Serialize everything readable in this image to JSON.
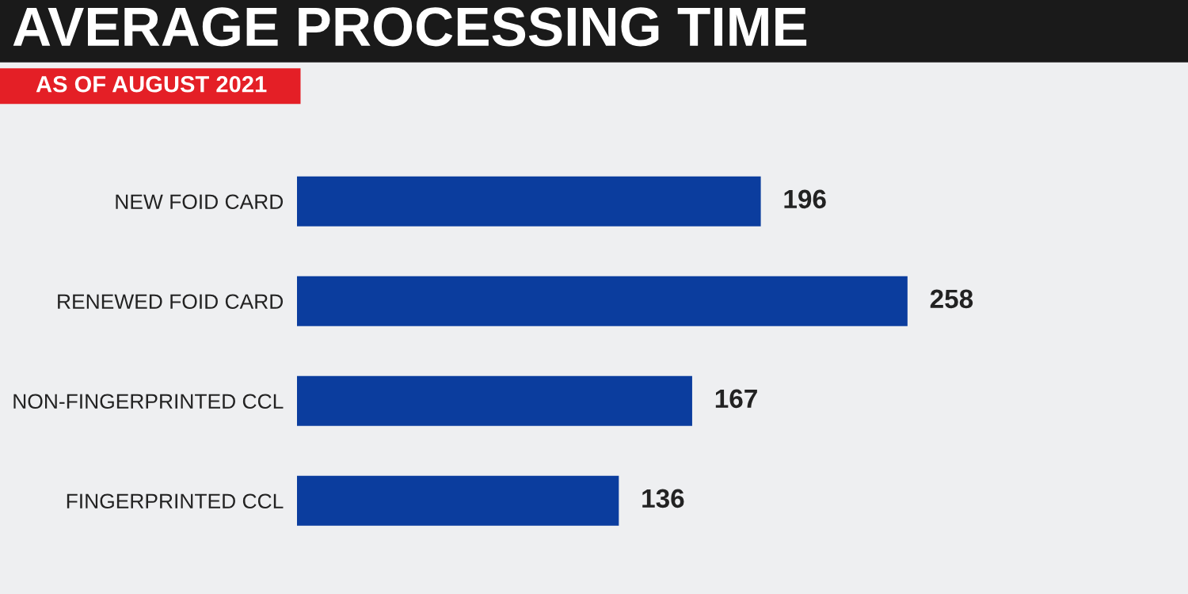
{
  "chart_data": {
    "type": "bar",
    "orientation": "horizontal",
    "title": "AVERAGE PROCESSING TIME",
    "subtitle": "AS OF AUGUST 2021",
    "categories": [
      "NEW FOID CARD",
      "RENEWED FOID CARD",
      "NON-FINGERPRINTED CCL",
      "FINGERPRINTED CCL"
    ],
    "values": [
      196,
      258,
      167,
      136
    ],
    "color": "#0b3d9e",
    "data_labels": true,
    "grid": false,
    "legend": false
  }
}
